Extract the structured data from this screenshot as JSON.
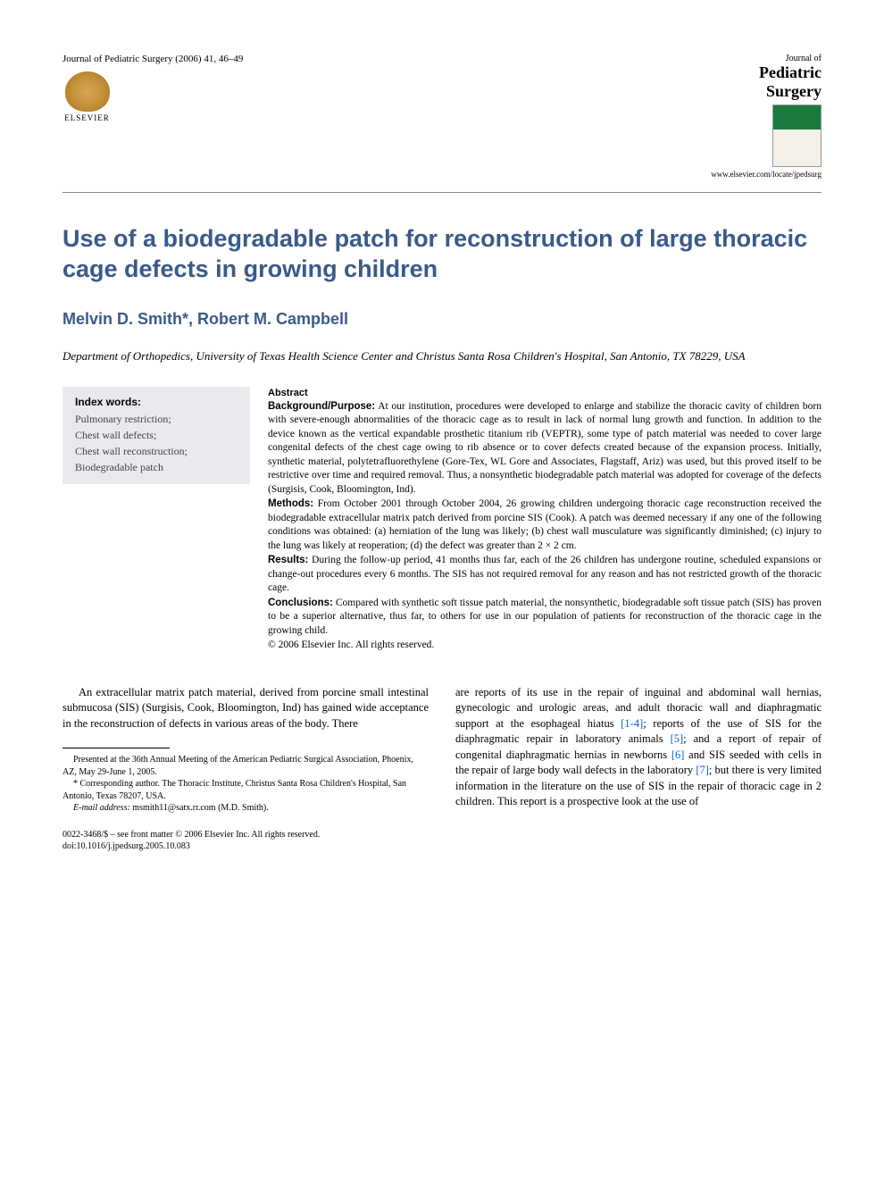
{
  "header": {
    "journal_citation": "Journal of Pediatric Surgery (2006) 41, 46–49",
    "publisher_name": "ELSEVIER",
    "journal_name_line1": "Journal of",
    "journal_name_line2": "Pediatric",
    "journal_name_line3": "Surgery",
    "journal_url": "www.elsevier.com/locate/jpedsurg"
  },
  "article": {
    "title": "Use of a biodegradable patch for reconstruction of large thoracic cage defects in growing children",
    "authors": "Melvin D. Smith*, Robert M. Campbell",
    "affiliation": "Department of Orthopedics, University of Texas Health Science Center and Christus Santa Rosa Children's Hospital, San Antonio, TX 78229, USA"
  },
  "keywords": {
    "title": "Index words:",
    "items": "Pulmonary restriction;\nChest wall defects;\nChest wall reconstruction;\nBiodegradable patch"
  },
  "abstract": {
    "heading": "Abstract",
    "background_label": "Background/Purpose:",
    "background_text": " At our institution, procedures were developed to enlarge and stabilize the thoracic cavity of children born with severe-enough abnormalities of the thoracic cage as to result in lack of normal lung growth and function. In addition to the device known as the vertical expandable prosthetic titanium rib (VEPTR), some type of patch material was needed to cover large congenital defects of the chest cage owing to rib absence or to cover defects created because of the expansion process. Initially, synthetic material, polytetrafluorethylene (Gore-Tex, WL Gore and Associates, Flagstaff, Ariz) was used, but this proved itself to be restrictive over time and required removal. Thus, a nonsynthetic biodegradable patch material was adopted for coverage of the defects (Surgisis, Cook, Bloomington, Ind).",
    "methods_label": "Methods:",
    "methods_text": " From October 2001 through October 2004, 26 growing children undergoing thoracic cage reconstruction received the biodegradable extracellular matrix patch derived from porcine SIS (Cook). A patch was deemed necessary if any one of the following conditions was obtained: (a) herniation of the lung was likely; (b) chest wall musculature was significantly diminished; (c) injury to the lung was likely at reoperation; (d) the defect was greater than 2 × 2 cm.",
    "results_label": "Results:",
    "results_text": " During the follow-up period, 41 months thus far, each of the 26 children has undergone routine, scheduled expansions or change-out procedures every 6 months. The SIS has not required removal for any reason and has not restricted growth of the thoracic cage.",
    "conclusions_label": "Conclusions:",
    "conclusions_text": " Compared with synthetic soft tissue patch material, the nonsynthetic, biodegradable soft tissue patch (SIS) has proven to be a superior alternative, thus far, to others for use in our population of patients for reconstruction of the thoracic cage in the growing child.",
    "copyright": "© 2006 Elsevier Inc. All rights reserved."
  },
  "body": {
    "col1_p1": "An extracellular matrix patch material, derived from porcine small intestinal submucosa (SIS) (Surgisis, Cook, Bloomington, Ind) has gained wide acceptance in the reconstruction of defects in various areas of the body. There",
    "col2_p1_a": "are reports of its use in the repair of inguinal and abdominal wall hernias, gynecologic and urologic areas, and adult thoracic wall and diaphragmatic support at the esophageal hiatus ",
    "col2_ref1": "[1-4]",
    "col2_p1_b": "; reports of the use of SIS for the diaphragmatic repair in laboratory animals ",
    "col2_ref2": "[5]",
    "col2_p1_c": "; and a report of repair of congenital diaphragmatic hernias in newborns ",
    "col2_ref3": "[6]",
    "col2_p1_d": " and SIS seeded with cells in the repair of large body wall defects in the laboratory ",
    "col2_ref4": "[7]",
    "col2_p1_e": "; but there is very limited information in the literature on the use of SIS in the repair of thoracic cage in 2 children. This report is a prospective look at the use of"
  },
  "footnotes": {
    "presented": "Presented at the 36th Annual Meeting of the American Pediatric Surgical Association, Phoenix, AZ, May 29-June 1, 2005.",
    "corresponding": "* Corresponding author. The Thoracic Institute, Christus Santa Rosa Children's Hospital, San Antonio, Texas 78207, USA.",
    "email_label": "E-mail address:",
    "email": " msmith11@satx.rr.com (M.D. Smith)."
  },
  "bottom": {
    "line1": "0022-3468/$ – see front matter © 2006 Elsevier Inc. All rights reserved.",
    "line2": "doi:10.1016/j.jpedsurg.2005.10.083"
  },
  "colors": {
    "title_color": "#3a5a8a",
    "link_color": "#0066cc",
    "keywords_bg": "#e8eaed",
    "text_color": "#000000"
  },
  "typography": {
    "title_fontsize": 27,
    "authors_fontsize": 18,
    "body_fontsize": 12.5,
    "abstract_fontsize": 11.5,
    "footnote_fontsize": 10
  }
}
